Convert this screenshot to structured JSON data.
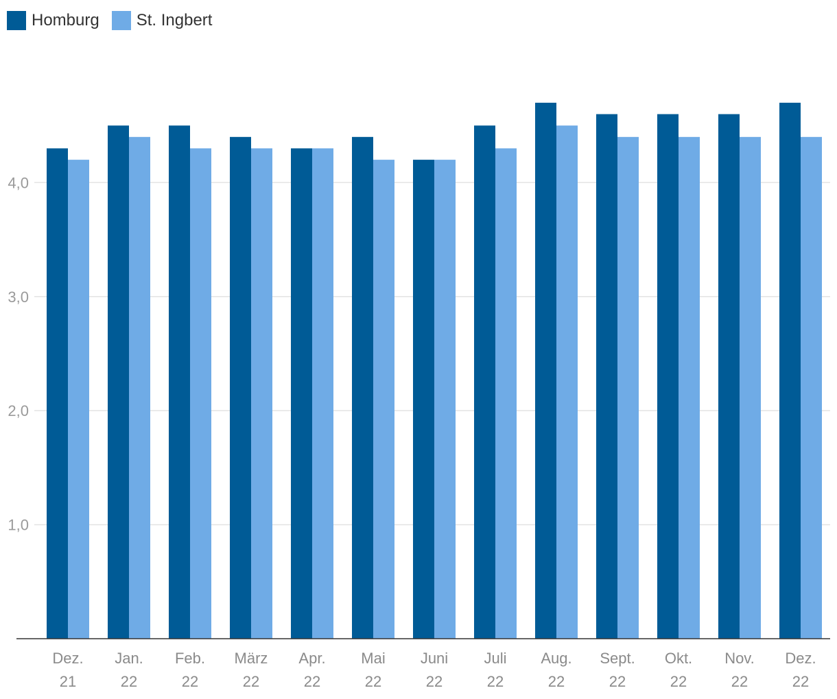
{
  "chart_data": {
    "type": "bar",
    "categories": [
      [
        "Dez.",
        "21"
      ],
      [
        "Jan.",
        "22"
      ],
      [
        "Feb.",
        "22"
      ],
      [
        "März",
        "22"
      ],
      [
        "Apr.",
        "22"
      ],
      [
        "Mai",
        "22"
      ],
      [
        "Juni",
        "22"
      ],
      [
        "Juli",
        "22"
      ],
      [
        "Aug.",
        "22"
      ],
      [
        "Sept.",
        "22"
      ],
      [
        "Okt.",
        "22"
      ],
      [
        "Nov.",
        "22"
      ],
      [
        "Dez.",
        "22"
      ]
    ],
    "series": [
      {
        "name": "Homburg",
        "color": "#005b96",
        "values": [
          4.3,
          4.5,
          4.5,
          4.4,
          4.3,
          4.4,
          4.2,
          4.5,
          4.7,
          4.6,
          4.6,
          4.6,
          4.7
        ]
      },
      {
        "name": "St. Ingbert",
        "color": "#6fabe6",
        "values": [
          4.2,
          4.4,
          4.3,
          4.3,
          4.3,
          4.2,
          4.2,
          4.3,
          4.5,
          4.4,
          4.4,
          4.4,
          4.4
        ]
      }
    ],
    "yticks": [
      1,
      2,
      3,
      4
    ],
    "ytick_labels": [
      "1,0",
      "2,0",
      "3,0",
      "4,0"
    ],
    "ylim": [
      0,
      5.06
    ],
    "grid": true,
    "legend": "top-left",
    "title": "",
    "xlabel": "",
    "ylabel": ""
  }
}
